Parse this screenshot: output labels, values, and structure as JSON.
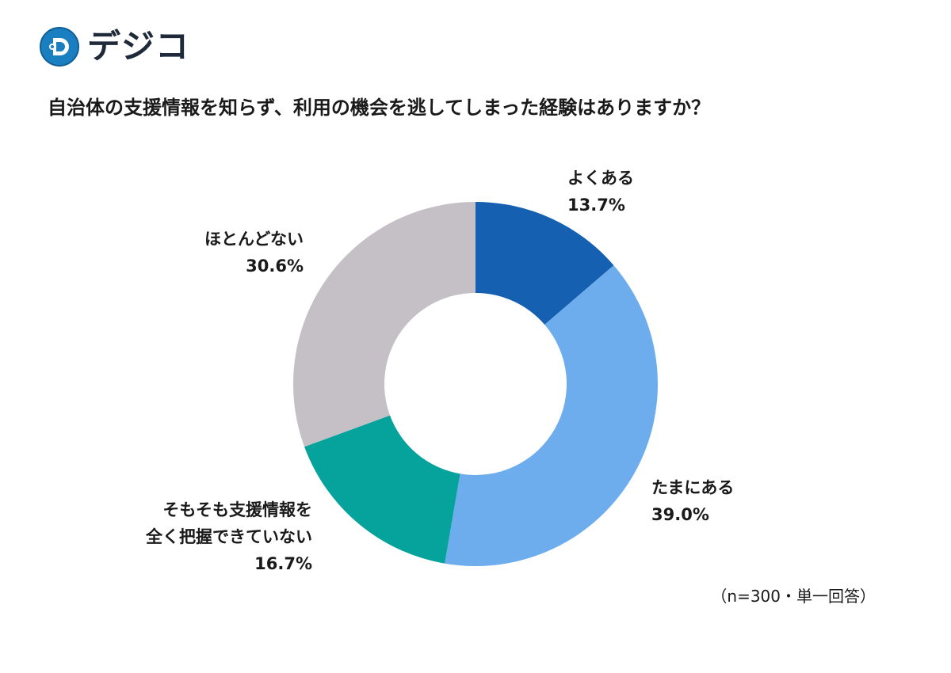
{
  "logo": {
    "text": "デジコ"
  },
  "chart_data": {
    "type": "pie",
    "donut": true,
    "title": "自治体の支援情報を知らず、利用の機会を逃してしまった経験はありますか？",
    "categories": [
      "よくある",
      "たまにある",
      "そもそも支援情報を全く把握できていない",
      "ほとんどない"
    ],
    "values": [
      13.7,
      39.0,
      16.7,
      30.6
    ],
    "value_labels": [
      "13.7%",
      "39.0%",
      "16.7%",
      "30.6%"
    ],
    "colors": [
      "#1560b0",
      "#6eaded",
      "#06a29c",
      "#c4c0c6"
    ],
    "start": "top",
    "direction": "clockwise",
    "note": "（n=300・単一回答）"
  },
  "labels": {
    "yokuaru": {
      "line1": "よくある",
      "value": "13.7%"
    },
    "tamani": {
      "line1": "たまにある",
      "value": "39.0%"
    },
    "somosomo": {
      "line1": "そもそも支援情報を",
      "line2": "全く把握できていない",
      "value": "16.7%"
    },
    "hotondo": {
      "line1": "ほとんどない",
      "value": "30.6%"
    }
  }
}
